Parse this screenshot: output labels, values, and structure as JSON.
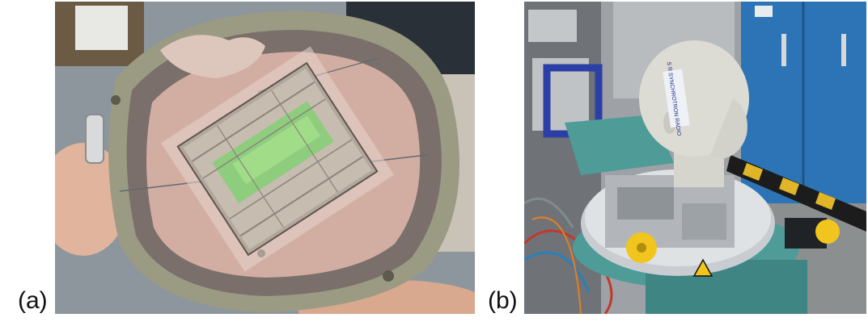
{
  "figure": {
    "panels": [
      {
        "label": "(a)",
        "icon": "phantom-plate-photo"
      },
      {
        "label": "(b)",
        "icon": "head-phantom-setup-photo"
      }
    ],
    "head_tape_text": "S  R  SYNCHROTRON RADIO"
  },
  "colors": {
    "plate_outer": "#9b9a82",
    "plate_dark_ring": "#7b6f6b",
    "plate_tissue": "#d2aea2",
    "cassette_green": "#7fcf72",
    "head_white": "#dcdcd5",
    "teal_stage": "#4f9b98",
    "blue_locker": "#2d74b7",
    "yellow_knob": "#f1c51d"
  }
}
